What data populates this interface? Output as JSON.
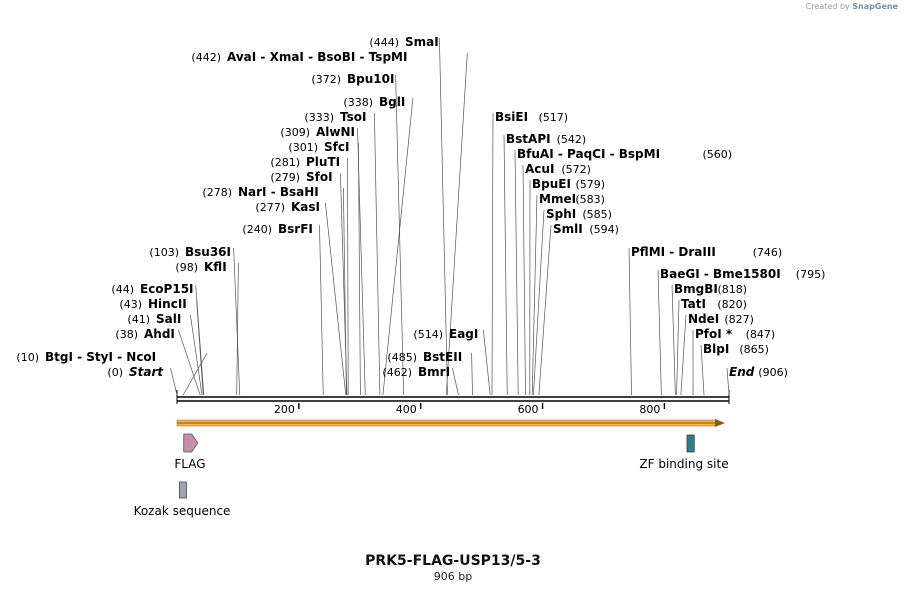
{
  "watermark": {
    "prefix": "Created by",
    "brand": "SnapGene"
  },
  "map": {
    "title": "PRK5-FLAG-USP13/5-3",
    "length_label": "906 bp",
    "length": 906
  },
  "ticks": [
    {
      "value": 200,
      "label": "200"
    },
    {
      "value": 400,
      "label": "400"
    },
    {
      "value": 600,
      "label": "600"
    },
    {
      "value": 800,
      "label": "800"
    }
  ],
  "sites": [
    {
      "pos": "(444)",
      "names": "SmaI",
      "cut": 444
    },
    {
      "pos": "(442)",
      "names": "AvaI  -  XmaI  -  BsoBI  -  TspMI",
      "cut": 442
    },
    {
      "pos": "(372)",
      "names": "Bpu10I",
      "cut": 372
    },
    {
      "pos": "(338)",
      "names": "BglI",
      "cut": 338
    },
    {
      "pos": "(333)",
      "names": "TsoI",
      "cut": 333
    },
    {
      "pos": "(309)",
      "names": "AlwNI",
      "cut": 309
    },
    {
      "pos": "(301)",
      "names": "SfcI",
      "cut": 301
    },
    {
      "pos": "(281)",
      "names": "PluTI",
      "cut": 281
    },
    {
      "pos": "(279)",
      "names": "SfoI",
      "cut": 279
    },
    {
      "pos": "(278)",
      "names": "NarI  -  BsaHI",
      "cut": 278
    },
    {
      "pos": "(277)",
      "names": "KasI",
      "cut": 277
    },
    {
      "pos": "(240)",
      "names": "BsrFI",
      "cut": 240
    },
    {
      "pos": "(103)",
      "names": "Bsu36I",
      "cut": 103
    },
    {
      "pos": "(98)",
      "names": "KflI",
      "cut": 98
    },
    {
      "pos": "(44)",
      "names": "EcoP15I",
      "cut": 44
    },
    {
      "pos": "(43)",
      "names": "HincII",
      "cut": 43
    },
    {
      "pos": "(41)",
      "names": "SalI",
      "cut": 41
    },
    {
      "pos": "(38)",
      "names": "AhdI",
      "cut": 38
    },
    {
      "pos": "(10)",
      "names": "BtgI  -  StyI  -  NcoI",
      "cut": 10
    },
    {
      "pos": "(0)",
      "names": "Start",
      "cut": 0,
      "italic": true
    },
    {
      "pos": "(514)",
      "names": "EagI",
      "cut": 514
    },
    {
      "pos": "(485)",
      "names": "BstEII",
      "cut": 485
    },
    {
      "pos": "(462)",
      "names": "BmrI",
      "cut": 462
    },
    {
      "pos": "(517)",
      "names": "BsiEI",
      "cut": 517
    },
    {
      "pos": "(542)",
      "names": "BstAPI",
      "cut": 542
    },
    {
      "pos": "(560)",
      "names": "BfuAI  -  PaqCI  -  BspMI",
      "cut": 560
    },
    {
      "pos": "(572)",
      "names": "AcuI",
      "cut": 572
    },
    {
      "pos": "(579)",
      "names": "BpuEI",
      "cut": 579
    },
    {
      "pos": "(583)",
      "names": "MmeI",
      "cut": 583
    },
    {
      "pos": "(585)",
      "names": "SphI",
      "cut": 585
    },
    {
      "pos": "(594)",
      "names": "SmlI",
      "cut": 594
    },
    {
      "pos": "(746)",
      "names": "PflMI  -  DraIII",
      "cut": 746
    },
    {
      "pos": "(795)",
      "names": "BaeGI  -  Bme1580I",
      "cut": 795
    },
    {
      "pos": "(818)",
      "names": "BmgBI",
      "cut": 818
    },
    {
      "pos": "(820)",
      "names": "TatI",
      "cut": 820
    },
    {
      "pos": "(827)",
      "names": "NdeI",
      "cut": 827
    },
    {
      "pos": "(847)",
      "names": "PfoI *",
      "cut": 847
    },
    {
      "pos": "(865)",
      "names": "BlpI",
      "cut": 865
    },
    {
      "pos": "(906)",
      "names": "End",
      "cut": 906,
      "italic": true
    }
  ],
  "features": [
    {
      "label": "FLAG",
      "type": "arrow",
      "color": "#c48fa8",
      "start": 11,
      "end": 34
    },
    {
      "label": "ZF binding site",
      "type": "box",
      "color": "#2e7f8a",
      "start": 837,
      "end": 849
    },
    {
      "label": "Kozak sequence",
      "type": "box",
      "color": "#a0a4ad",
      "start": 4,
      "end": 13
    }
  ],
  "orf": {
    "color": "#f5b347",
    "stroke": "#b5782a",
    "start": 0,
    "end": 906
  }
}
